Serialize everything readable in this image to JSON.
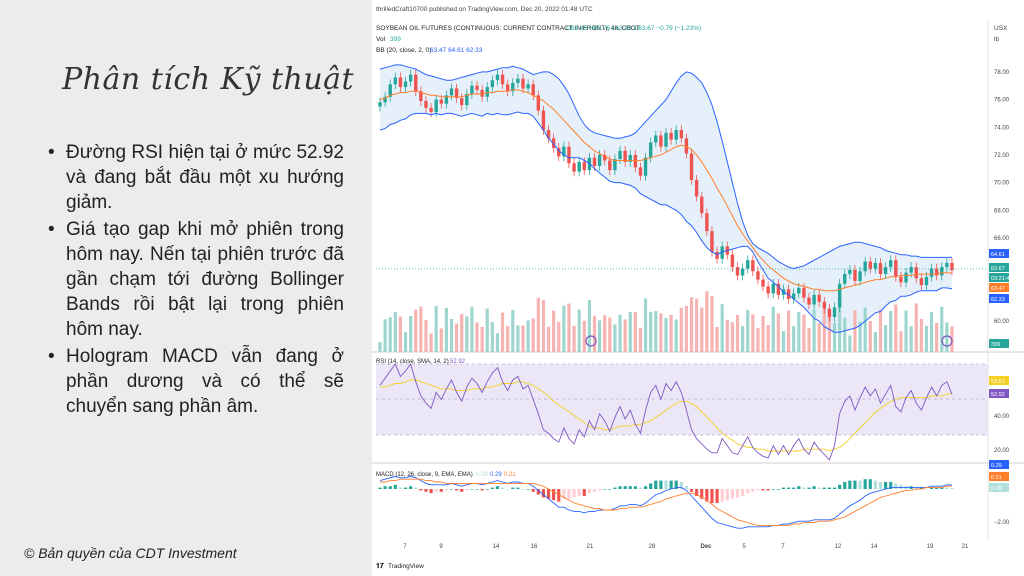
{
  "slide": {
    "title": "Phân tích Kỹ thuật",
    "bullets": [
      "Đường RSI hiện tại ở mức 52.92 và đang bắt đầu một xu hướng giảm.",
      "Giá tạo gap khi mở phiên trong hôm nay. Nến tại phiên trước đã gần chạm tới đường Bollinger Bands rồi bật lại trong phiên hôm nay.",
      "Hologram MACD vẫn đang ở phần dương và có thể sẽ chuyển sang phần âm."
    ],
    "copyright": "© Bản quyền của CDT Investment"
  },
  "tradingview": {
    "publisher_line": "thrilledCraft10700 published on TradingView.com, Dec 20, 2022 01:48 UTC",
    "symbol_line": "SOYBEAN OIL FUTURES (CONTINUOUS: CURRENT CONTRACT IN FRONT), 4h, CBOT",
    "ohlc": "O63.45 H63.76 L63.42 C63.67 −0.79 (−1.23%)",
    "currency": "USX",
    "unit": "lb",
    "vol_label": "Vol",
    "vol_value": "399",
    "bb_label": "BB (20, close, 2, 0)",
    "bb_values": "63.47 64.61 62.33",
    "rsi_label": "RSI (14, close, SMA, 14, 2)",
    "rsi_value": "52.92",
    "rsi_ma_value": "53.51",
    "macd_label": "MACD (12, 26, close, 9, EMA, EMA)",
    "macd_values": [
      "0.08",
      "0.29",
      "0.21"
    ],
    "logo_text": "TradingView",
    "price_axis_labels": [
      "78.00",
      "76.00",
      "74.00",
      "72.00",
      "70.00",
      "68.00",
      "66.00",
      "60.00"
    ],
    "price_badges": [
      {
        "text": "64.61",
        "color": "#2962ff"
      },
      {
        "text": "63.67",
        "color": "#26a69a"
      },
      {
        "text": "03:21:46",
        "color": "#26a69a"
      },
      {
        "text": "63.47",
        "color": "#ff7f2a"
      },
      {
        "text": "62.33",
        "color": "#2962ff"
      },
      {
        "text": "399",
        "color": "#26a69a"
      }
    ],
    "rsi_axis_labels": [
      "60.00",
      "40.00",
      "20.00"
    ],
    "rsi_badges": [
      {
        "text": "53.51",
        "color": "#f5d023"
      },
      {
        "text": "52.92",
        "color": "#7e57c2"
      }
    ],
    "macd_axis_labels": [
      "−2.00"
    ],
    "macd_badges": [
      {
        "text": "0.29",
        "color": "#2962ff"
      },
      {
        "text": "0.21",
        "color": "#ff7f2a"
      },
      {
        "text": "0.08",
        "color": "#b2dfdb"
      }
    ],
    "time_labels": [
      "7",
      "9",
      "14",
      "16",
      "21",
      "28",
      "Dec",
      "5",
      "7",
      "12",
      "14",
      "19",
      "21"
    ],
    "colors": {
      "up": "#26a69a",
      "down": "#ef5350",
      "bb": "#2962ff",
      "bb_fill": "#dbe9f8",
      "basis": "#ff7f2a",
      "rsi": "#7e57c2",
      "rsi_ma": "#f5d023",
      "macd": "#2962ff",
      "signal": "#ff7f2a"
    }
  },
  "chart_data": {
    "type": "candlestick",
    "title": "SOYBEAN OIL FUTURES (CONTINUOUS: CURRENT CONTRACT IN FRONT), 4h, CBOT",
    "ylabel": "USX/lb",
    "ylim": [
      59,
      79
    ],
    "x_ticks": [
      "7",
      "9",
      "14",
      "16",
      "21",
      "28",
      "Dec",
      "5",
      "7",
      "12",
      "14",
      "19",
      "21"
    ],
    "close": [
      75.8,
      76.2,
      77.1,
      77.6,
      76.9,
      77.3,
      77.8,
      76.6,
      75.9,
      75.4,
      75.1,
      76.0,
      75.7,
      76.3,
      76.8,
      76.1,
      75.6,
      76.4,
      77.0,
      76.7,
      76.2,
      76.9,
      77.4,
      77.8,
      77.1,
      76.6,
      77.2,
      77.5,
      76.8,
      77.1,
      76.3,
      75.2,
      73.8,
      73.2,
      72.5,
      71.9,
      72.6,
      71.4,
      70.8,
      71.5,
      70.9,
      71.8,
      71.2,
      72.0,
      71.6,
      70.9,
      71.7,
      72.3,
      71.5,
      72.0,
      71.1,
      70.5,
      71.8,
      72.9,
      73.4,
      72.6,
      73.6,
      73.1,
      73.8,
      73.2,
      72.1,
      70.2,
      69.0,
      67.8,
      66.5,
      65.0,
      64.5,
      65.4,
      64.8,
      63.9,
      63.3,
      63.8,
      64.4,
      63.6,
      63.0,
      62.5,
      62.0,
      62.7,
      61.9,
      62.3,
      61.6,
      62.0,
      62.4,
      61.7,
      61.2,
      61.9,
      61.4,
      60.9,
      60.3,
      61.0,
      62.7,
      63.4,
      63.7,
      62.9,
      63.6,
      64.3,
      63.8,
      64.2,
      63.4,
      63.9,
      64.4,
      63.2,
      62.8,
      63.5,
      63.9,
      63.1,
      62.6,
      63.2,
      63.8,
      63.3,
      63.9,
      64.2,
      63.67
    ],
    "bb_upper": [
      78.2,
      78.3,
      78.4,
      78.5,
      78.5,
      78.4,
      78.3,
      78.2,
      78.0,
      77.8,
      77.7,
      77.6,
      77.5,
      77.4,
      77.4,
      77.5,
      77.6,
      77.7,
      77.8,
      77.9,
      78.0,
      78.0,
      78.1,
      78.2,
      78.3,
      78.3,
      78.4,
      78.3,
      78.2,
      78.0,
      77.8,
      77.9,
      78.0,
      78.0,
      77.8,
      77.5,
      77.0,
      76.4,
      75.6,
      74.8,
      74.2,
      73.8,
      73.6,
      73.5,
      73.4,
      73.3,
      73.2,
      73.2,
      73.3,
      73.4,
      73.6,
      74.0,
      74.4,
      74.8,
      75.2,
      75.6,
      76.0,
      76.6,
      77.2,
      77.7,
      78.0,
      77.9,
      77.6,
      77.2,
      76.5,
      75.6,
      74.4,
      73.0,
      71.5,
      70.0,
      68.5,
      67.2,
      66.2,
      65.6,
      65.3,
      65.1,
      64.9,
      64.6,
      64.3,
      64.1,
      63.9,
      63.8,
      63.9,
      64.0,
      64.2,
      64.4,
      64.6,
      64.8,
      65.0,
      65.2,
      65.4,
      65.5,
      65.6,
      65.7,
      65.7,
      65.6,
      65.5,
      65.4,
      65.3,
      65.1,
      65.0,
      64.9,
      64.8,
      64.8,
      64.7,
      64.7,
      64.6,
      64.6,
      64.6,
      64.6,
      64.6,
      64.6,
      64.61
    ],
    "bb_basis": [
      76.0,
      76.1,
      76.3,
      76.4,
      76.5,
      76.5,
      76.6,
      76.6,
      76.5,
      76.4,
      76.3,
      76.3,
      76.2,
      76.2,
      76.2,
      76.2,
      76.2,
      76.3,
      76.4,
      76.4,
      76.4,
      76.5,
      76.5,
      76.6,
      76.6,
      76.6,
      76.7,
      76.7,
      76.6,
      76.5,
      76.3,
      76.1,
      75.9,
      75.6,
      75.3,
      74.9,
      74.5,
      74.1,
      73.7,
      73.3,
      72.9,
      72.6,
      72.3,
      72.1,
      71.9,
      71.7,
      71.6,
      71.6,
      71.6,
      71.6,
      71.6,
      71.6,
      71.7,
      71.8,
      71.9,
      72.0,
      72.2,
      72.4,
      72.6,
      72.7,
      72.6,
      72.4,
      72.0,
      71.5,
      70.9,
      70.3,
      69.6,
      69.0,
      68.3,
      67.6,
      66.9,
      66.3,
      65.8,
      65.3,
      64.8,
      64.4,
      64.0,
      63.7,
      63.4,
      63.1,
      62.9,
      62.7,
      62.6,
      62.5,
      62.4,
      62.3,
      62.3,
      62.2,
      62.2,
      62.2,
      62.3,
      62.4,
      62.5,
      62.6,
      62.7,
      62.8,
      62.9,
      63.0,
      63.0,
      63.1,
      63.2,
      63.2,
      63.3,
      63.3,
      63.3,
      63.4,
      63.4,
      63.4,
      63.4,
      63.4,
      63.5,
      63.5,
      63.47
    ],
    "bb_lower": [
      73.8,
      73.9,
      74.2,
      74.3,
      74.5,
      74.6,
      74.9,
      75.0,
      75.0,
      75.0,
      74.9,
      75.0,
      74.9,
      75.0,
      75.0,
      74.9,
      74.8,
      74.9,
      75.0,
      74.9,
      74.8,
      75.0,
      74.9,
      75.0,
      74.9,
      74.9,
      75.0,
      75.1,
      75.0,
      75.0,
      74.8,
      74.3,
      73.8,
      73.2,
      72.8,
      72.3,
      72.0,
      71.8,
      71.8,
      71.8,
      71.6,
      71.4,
      71.0,
      70.7,
      70.4,
      70.1,
      70.0,
      70.0,
      69.9,
      69.8,
      69.6,
      69.2,
      69.0,
      68.8,
      68.6,
      68.4,
      68.4,
      68.2,
      68.0,
      67.7,
      67.2,
      66.9,
      66.4,
      65.8,
      65.3,
      65.0,
      64.8,
      65.0,
      65.1,
      65.2,
      65.3,
      65.4,
      65.4,
      65.0,
      64.3,
      63.7,
      63.1,
      62.8,
      62.5,
      62.1,
      61.9,
      61.6,
      61.3,
      61.0,
      60.6,
      60.2,
      60.0,
      59.6,
      59.4,
      59.2,
      59.2,
      59.3,
      59.4,
      59.5,
      59.7,
      60.0,
      60.3,
      60.6,
      60.7,
      61.1,
      61.4,
      61.5,
      61.8,
      61.8,
      61.9,
      62.1,
      62.2,
      62.2,
      62.2,
      62.2,
      62.4,
      62.4,
      62.33
    ],
    "volume_max_note": "volume bars shown relative",
    "rsi": [
      58,
      62,
      66,
      70,
      63,
      66,
      70,
      60,
      52,
      48,
      45,
      54,
      50,
      56,
      61,
      54,
      49,
      57,
      62,
      59,
      54,
      60,
      65,
      68,
      60,
      55,
      61,
      63,
      56,
      58,
      50,
      42,
      33,
      31,
      28,
      26,
      34,
      28,
      25,
      33,
      29,
      38,
      33,
      42,
      38,
      32,
      40,
      46,
      39,
      44,
      36,
      31,
      44,
      54,
      58,
      50,
      59,
      55,
      60,
      54,
      44,
      33,
      28,
      25,
      22,
      20,
      20,
      28,
      24,
      20,
      19,
      24,
      29,
      23,
      20,
      18,
      17,
      24,
      19,
      24,
      19,
      24,
      28,
      22,
      19,
      26,
      22,
      19,
      16,
      24,
      42,
      49,
      52,
      44,
      51,
      57,
      52,
      56,
      48,
      53,
      58,
      46,
      43,
      51,
      55,
      48,
      44,
      51,
      57,
      52,
      58,
      60,
      52.92
    ],
    "rsi_ma": [
      57,
      57,
      58,
      59,
      59,
      60,
      61,
      61,
      60,
      59,
      58,
      57,
      56,
      56,
      56,
      55,
      55,
      55,
      56,
      56,
      56,
      57,
      57,
      58,
      59,
      59,
      59,
      60,
      60,
      59,
      58,
      56,
      54,
      52,
      49,
      47,
      45,
      43,
      41,
      39,
      37,
      35,
      34,
      34,
      33,
      33,
      34,
      35,
      35,
      35,
      36,
      36,
      37,
      38,
      40,
      42,
      44,
      46,
      48,
      49,
      49,
      48,
      46,
      43,
      40,
      37,
      34,
      31,
      29,
      27,
      25,
      24,
      23,
      23,
      22,
      22,
      21,
      21,
      21,
      21,
      21,
      21,
      21,
      22,
      22,
      22,
      22,
      22,
      21,
      22,
      23,
      25,
      28,
      31,
      34,
      37,
      40,
      43,
      45,
      47,
      49,
      50,
      51,
      51,
      51,
      51,
      51,
      51,
      52,
      52,
      52,
      53,
      53.51
    ],
    "macd": [
      0.6,
      0.7,
      0.8,
      0.9,
      0.8,
      0.8,
      0.9,
      0.8,
      0.6,
      0.4,
      0.3,
      0.3,
      0.3,
      0.3,
      0.4,
      0.3,
      0.2,
      0.3,
      0.4,
      0.4,
      0.3,
      0.4,
      0.5,
      0.6,
      0.5,
      0.4,
      0.5,
      0.5,
      0.4,
      0.4,
      0.2,
      -0.1,
      -0.4,
      -0.7,
      -1.0,
      -1.3,
      -1.3,
      -1.5,
      -1.6,
      -1.6,
      -1.7,
      -1.6,
      -1.6,
      -1.5,
      -1.5,
      -1.5,
      -1.4,
      -1.2,
      -1.2,
      -1.1,
      -1.1,
      -1.2,
      -1.0,
      -0.7,
      -0.4,
      -0.3,
      -0.1,
      0.0,
      0.1,
      0.1,
      -0.1,
      -0.5,
      -0.9,
      -1.3,
      -1.7,
      -2.1,
      -2.4,
      -2.5,
      -2.6,
      -2.7,
      -2.8,
      -2.8,
      -2.7,
      -2.7,
      -2.7,
      -2.7,
      -2.7,
      -2.6,
      -2.6,
      -2.5,
      -2.5,
      -2.4,
      -2.3,
      -2.3,
      -2.3,
      -2.2,
      -2.2,
      -2.2,
      -2.2,
      -2.1,
      -1.8,
      -1.5,
      -1.2,
      -1.0,
      -0.8,
      -0.5,
      -0.3,
      -0.2,
      -0.1,
      0.0,
      0.1,
      0.1,
      0.1,
      0.1,
      0.1,
      0.1,
      0.1,
      0.1,
      0.2,
      0.2,
      0.2,
      0.3,
      0.29
    ],
    "macd_signal": [
      0.5,
      0.5,
      0.6,
      0.6,
      0.7,
      0.7,
      0.7,
      0.7,
      0.7,
      0.6,
      0.6,
      0.5,
      0.5,
      0.4,
      0.4,
      0.4,
      0.4,
      0.4,
      0.4,
      0.4,
      0.4,
      0.4,
      0.4,
      0.4,
      0.4,
      0.4,
      0.4,
      0.4,
      0.4,
      0.4,
      0.4,
      0.3,
      0.2,
      0.0,
      -0.2,
      -0.4,
      -0.6,
      -0.8,
      -1.0,
      -1.1,
      -1.2,
      -1.3,
      -1.4,
      -1.4,
      -1.5,
      -1.5,
      -1.5,
      -1.4,
      -1.4,
      -1.3,
      -1.3,
      -1.3,
      -1.2,
      -1.1,
      -1.0,
      -0.9,
      -0.7,
      -0.6,
      -0.5,
      -0.4,
      -0.3,
      -0.3,
      -0.4,
      -0.6,
      -0.8,
      -1.1,
      -1.4,
      -1.6,
      -1.8,
      -2.0,
      -2.2,
      -2.3,
      -2.4,
      -2.5,
      -2.6,
      -2.6,
      -2.6,
      -2.6,
      -2.6,
      -2.6,
      -2.6,
      -2.5,
      -2.5,
      -2.4,
      -2.4,
      -2.4,
      -2.3,
      -2.3,
      -2.3,
      -2.2,
      -2.1,
      -2.0,
      -1.8,
      -1.6,
      -1.4,
      -1.2,
      -1.0,
      -0.8,
      -0.6,
      -0.5,
      -0.4,
      -0.3,
      -0.2,
      -0.1,
      -0.1,
      0.0,
      0.0,
      0.1,
      0.1,
      0.1,
      0.1,
      0.2,
      0.21
    ]
  }
}
